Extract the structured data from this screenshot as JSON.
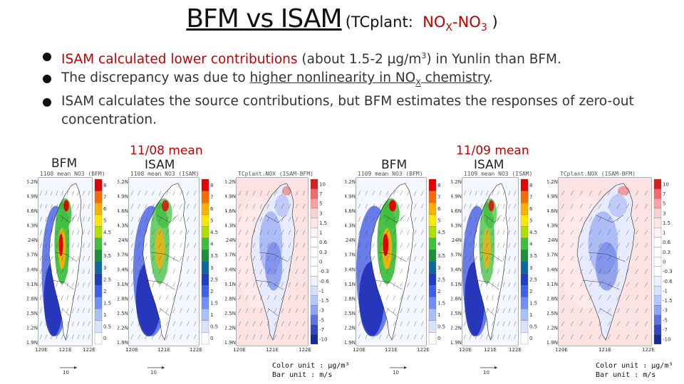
{
  "title": {
    "main": "BFM vs ISAM",
    "paren_open": "(TCplant:",
    "nox_main": "NO",
    "nox_sub": "X",
    "dash": "-NO",
    "no3_sub": "3",
    "paren_close": ")"
  },
  "bullets": [
    {
      "red": "ISAM calculated lower contributions",
      "text1": " (about 1.5-2 µg/m",
      "sup": "3",
      "text2": ") in Yunlin than BFM."
    },
    {
      "text1": "The discrepancy was due to ",
      "underlined": "higher nonlinearity in NO",
      "sub": "X",
      "underlined2": " chemistry",
      "text2": "."
    },
    {
      "text1": "ISAM calculates the source contributions, but BFM estimates the responses of zero-out concentration."
    }
  ],
  "groups": [
    {
      "date_label": "11/08 mean",
      "bfm_label": "BFM",
      "isam_label": "ISAM",
      "panels": [
        {
          "title": "1108 mean NO3 (BFM)",
          "colorbar": [
            "8",
            "7",
            "6",
            "5",
            "4.5",
            "4",
            "3.5",
            "3",
            "2.5",
            "2",
            "1.5",
            "1",
            "0.5",
            "0"
          ]
        },
        {
          "title": "1108 mean NO3 (ISAM)",
          "colorbar": [
            "8",
            "7",
            "6",
            "5",
            "4.5",
            "4",
            "3.5",
            "3",
            "2.5",
            "2",
            "1.5",
            "1",
            "0.5",
            "0"
          ]
        },
        {
          "title": "TCplant.NOX (ISAM-BFM)",
          "colorbar": [
            "10",
            "7",
            "5",
            "3",
            "1.5",
            "1",
            "0.6",
            "0.3",
            "0",
            "-0.3",
            "-0.6",
            "-1",
            "-1.5",
            "-3",
            "-5",
            "-7",
            "-10"
          ]
        }
      ],
      "unit_color": "Color unit : µg/m³",
      "unit_bar": "Bar unit : m/s"
    },
    {
      "date_label": "11/09 mean",
      "bfm_label": "BFM",
      "isam_label": "ISAM",
      "panels": [
        {
          "title": "1109 mean NO3 (BFM)",
          "colorbar": [
            "8",
            "7",
            "6",
            "5",
            "4.5",
            "4",
            "3.5",
            "3",
            "2.5",
            "2",
            "1.5",
            "1",
            "0.5",
            "0"
          ]
        },
        {
          "title": "1109 mean NO3 (ISAM)",
          "colorbar": [
            "8",
            "7",
            "6",
            "5",
            "4.5",
            "4",
            "3.5",
            "3",
            "2.5",
            "2",
            "1.5",
            "1",
            "0.5",
            "0"
          ]
        },
        {
          "title": "TCplant.NOX (ISAM-BFM)",
          "colorbar": [
            "10",
            "7",
            "5",
            "3",
            "1.5",
            "1",
            "0.6",
            "0.3",
            "0",
            "-0.3",
            "-0.6",
            "-1",
            "-1.5",
            "-3",
            "-5",
            "-7",
            "-10"
          ]
        }
      ],
      "unit_color": "Color unit : µg/m³",
      "unit_bar": "Bar unit : m/s"
    }
  ],
  "lat_ticks": [
    "25.2N",
    "24.9N",
    "24.6N",
    "24.3N",
    "24N",
    "23.7N",
    "23.4N",
    "23.1N",
    "22.8N",
    "22.5N",
    "22.2N",
    "21.9N"
  ],
  "lon_ticks": [
    "120E",
    "121E",
    "122E"
  ],
  "scale_label": "10",
  "colors": {
    "accent_red": "#c00000"
  }
}
